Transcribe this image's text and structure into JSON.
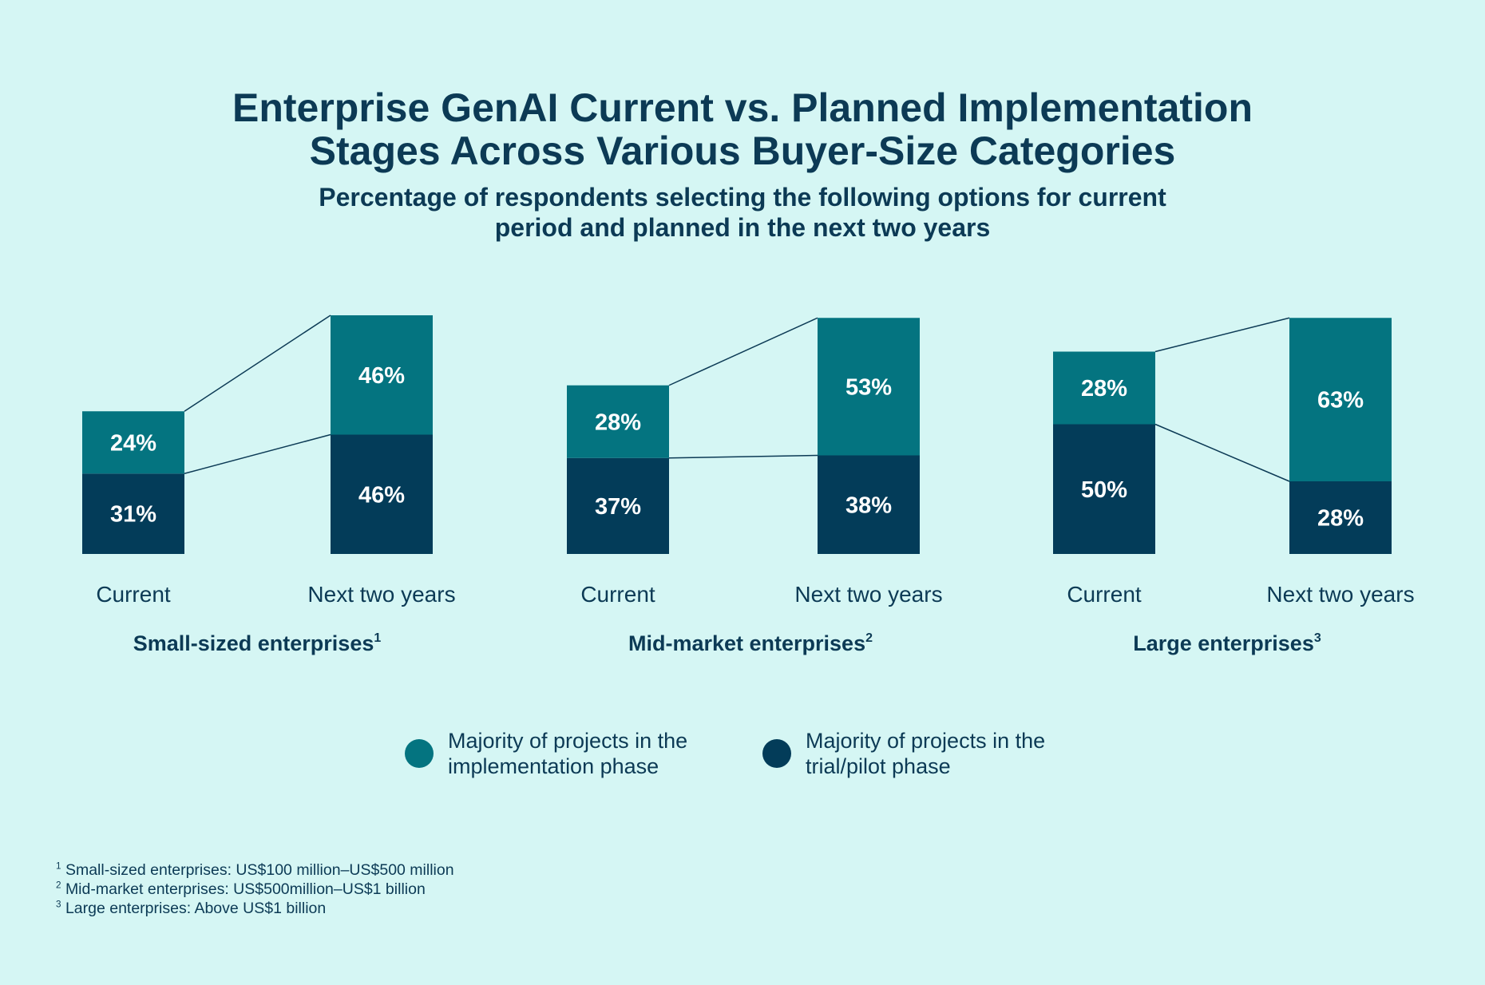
{
  "header": {
    "title_lines": [
      "Enterprise GenAI Current vs. Planned Implementation",
      "Stages Across Various Buyer-Size Categories"
    ],
    "subtitle_lines": [
      "Percentage of respondents selecting the following options for current",
      "period and planned in the next two years"
    ]
  },
  "colors": {
    "background": "#d5f6f4",
    "implementation": "#047480",
    "trial_pilot": "#033c59",
    "text": "#0c3a55"
  },
  "chart_data": {
    "type": "bar",
    "stacked": true,
    "title": "Enterprise GenAI Current vs. Planned Implementation Stages Across Various Buyer-Size Categories",
    "subtitle": "Percentage of respondents selecting the following options for current period and planned in the next two years",
    "unit": "%",
    "series": [
      {
        "name": "Majority of projects in the implementation phase",
        "color": "#047480"
      },
      {
        "name": "Majority of projects in the trial/pilot phase",
        "color": "#033c59"
      }
    ],
    "groups": [
      {
        "name": "Small-sized enterprises",
        "footnote_mark": "1",
        "bars": [
          {
            "label": "Current",
            "implementation": 24,
            "trial_pilot": 31
          },
          {
            "label": "Next two years",
            "implementation": 46,
            "trial_pilot": 46
          }
        ]
      },
      {
        "name": "Mid-market enterprises",
        "footnote_mark": "2",
        "bars": [
          {
            "label": "Current",
            "implementation": 28,
            "trial_pilot": 37
          },
          {
            "label": "Next two years",
            "implementation": 53,
            "trial_pilot": 38
          }
        ]
      },
      {
        "name": "Large enterprises",
        "footnote_mark": "3",
        "bars": [
          {
            "label": "Current",
            "implementation": 28,
            "trial_pilot": 50
          },
          {
            "label": "Next two years",
            "implementation": 63,
            "trial_pilot": 28
          }
        ]
      }
    ],
    "legend": {
      "position": "bottom-center",
      "entries": [
        {
          "lines": [
            "Majority of projects in the",
            "implementation phase"
          ],
          "color": "#047480"
        },
        {
          "lines": [
            "Majority of projects in the",
            "trial/pilot phase"
          ],
          "color": "#033c59"
        }
      ]
    }
  },
  "footnotes": [
    {
      "mark": "1",
      "text": "Small-sized enterprises: US$100 million–US$500 million"
    },
    {
      "mark": "2",
      "text": "Mid-market enterprises: US$500million–US$1 billion"
    },
    {
      "mark": "3",
      "text": "Large enterprises: Above US$1 billion"
    }
  ]
}
